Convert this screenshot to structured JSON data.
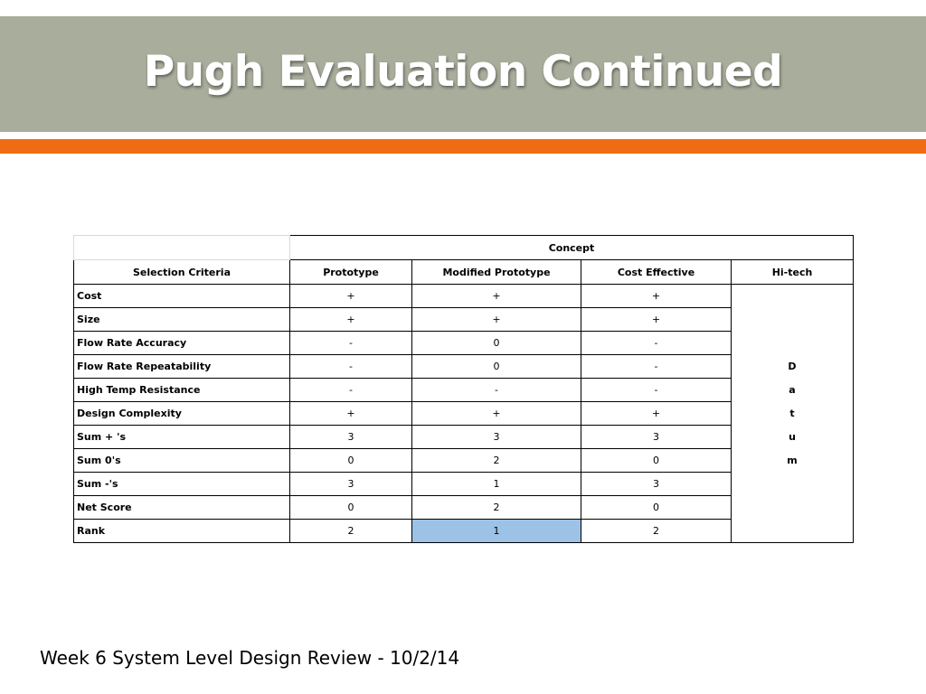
{
  "slide": {
    "title": "Pugh Evaluation Continued",
    "footer": "Week 6 System Level Design Review - 10/2/14"
  },
  "colors": {
    "title_bar": "#a9ad9c",
    "accent_bar": "#ef6b14",
    "highlight": "#9cc2e5"
  },
  "table": {
    "group_header": "Concept",
    "criteria_header": "Selection Criteria",
    "concepts": [
      "Prototype",
      "Modified Prototype",
      "Cost Effective",
      "Hi-tech"
    ],
    "datum_letters": [
      "D",
      "a",
      "t",
      "u",
      "m"
    ],
    "rows": [
      {
        "criterion": "Cost",
        "values": [
          "+",
          "+",
          "+"
        ]
      },
      {
        "criterion": "Size",
        "values": [
          "+",
          "+",
          "+"
        ]
      },
      {
        "criterion": "Flow Rate Accuracy",
        "values": [
          "-",
          "0",
          "-"
        ]
      },
      {
        "criterion": "Flow Rate Repeatability",
        "values": [
          "-",
          "0",
          "-"
        ]
      },
      {
        "criterion": "High Temp Resistance",
        "values": [
          "-",
          "-",
          "-"
        ]
      },
      {
        "criterion": "Design Complexity",
        "values": [
          "+",
          "+",
          "+"
        ]
      },
      {
        "criterion": "Sum + 's",
        "values": [
          "3",
          "3",
          "3"
        ]
      },
      {
        "criterion": "Sum 0's",
        "values": [
          "0",
          "2",
          "0"
        ]
      },
      {
        "criterion": "Sum -'s",
        "values": [
          "3",
          "1",
          "3"
        ]
      },
      {
        "criterion": "Net Score",
        "values": [
          "0",
          "2",
          "0"
        ]
      },
      {
        "criterion": "Rank",
        "values": [
          "2",
          "1",
          "2"
        ]
      }
    ]
  }
}
